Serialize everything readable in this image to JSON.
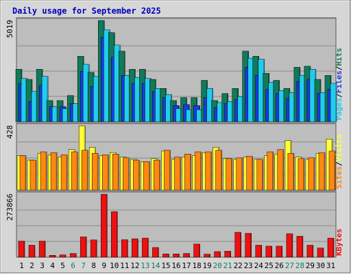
{
  "chart_data": {
    "type": "bar",
    "title": "Daily usage for September 2025",
    "colors": {
      "hits": "#117a5a",
      "files": "#1a3ae6",
      "pages": "#22ccee",
      "visits": "#ffff33",
      "sites": "#ff8811",
      "kbytes": "#ee1111",
      "title": "#0000bb",
      "weekend_day": "#117a5a",
      "plot_bg": "#bdbdbd",
      "frame_bg": "#d6d6d6"
    },
    "categories": [
      "1",
      "2",
      "3",
      "4",
      "5",
      "6",
      "7",
      "8",
      "9",
      "10",
      "11",
      "12",
      "13",
      "14",
      "15",
      "16",
      "17",
      "18",
      "19",
      "20",
      "21",
      "22",
      "23",
      "24",
      "25",
      "26",
      "27",
      "28",
      "29",
      "30",
      "31"
    ],
    "weekend_days": [
      "6",
      "7",
      "13",
      "14",
      "20",
      "21",
      "27",
      "28"
    ],
    "panels": [
      {
        "id": "hits-panel",
        "max_label": "5019",
        "ymax": 5019,
        "legend": [
          {
            "text": "Pages",
            "color": "#22ccee"
          },
          {
            "text": "/",
            "color": "#000000"
          },
          {
            "text": "Files",
            "color": "#1a3ae6"
          },
          {
            "text": "/",
            "color": "#000000"
          },
          {
            "text": "Hits",
            "color": "#117a5a"
          }
        ],
        "series": [
          {
            "name": "Hits",
            "color": "#117a5a",
            "values": [
              2600,
              2100,
              2600,
              1050,
              1050,
              1300,
              3250,
              2450,
              5019,
              4420,
              3500,
              2600,
              2600,
              2100,
              1650,
              1050,
              1200,
              1200,
              2050,
              1050,
              1400,
              1650,
              3500,
              3250,
              2400,
              2050,
              1650,
              2700,
              2750,
              2100,
              2300
            ]
          },
          {
            "name": "Files",
            "color": "#1a3ae6",
            "values": [
              1900,
              1000,
              1800,
              750,
              750,
              900,
              2500,
              1750,
              4200,
              3200,
              2300,
              1900,
              1900,
              1500,
              1200,
              800,
              850,
              800,
              1200,
              700,
              900,
              1100,
              2700,
              2300,
              1600,
              1400,
              1150,
              2000,
              2100,
              1400,
              1600
            ]
          },
          {
            "name": "Pages",
            "color": "#22ccee",
            "values": [
              2150,
              1500,
              2250,
              750,
              650,
              900,
              2850,
              2250,
              4550,
              3800,
              2300,
              2200,
              2150,
              1650,
              1350,
              650,
              600,
              600,
              1650,
              950,
              1000,
              1250,
              3150,
              3100,
              1950,
              1550,
              1450,
              2300,
              2600,
              1450,
              1900
            ]
          }
        ]
      },
      {
        "id": "visits-panel",
        "max_label": "428",
        "ymax": 428,
        "legend": [
          {
            "text": "Sites",
            "color": "#ff8811"
          },
          {
            "text": "/",
            "color": "#000000"
          },
          {
            "text": "Visits",
            "color": "#ffff33"
          }
        ],
        "series": [
          {
            "name": "Visits",
            "color": "#ffff33",
            "values": [
              230,
              200,
              245,
              235,
              220,
              270,
              428,
              285,
              230,
              250,
              220,
              205,
              190,
              210,
              260,
              205,
              220,
              230,
              250,
              285,
              210,
              205,
              220,
              205,
              230,
              240,
              330,
              220,
              205,
              245,
              340
            ]
          },
          {
            "name": "Sites",
            "color": "#ff8811",
            "values": [
              230,
              200,
              255,
              250,
              235,
              255,
              265,
              245,
              235,
              240,
              215,
              200,
              190,
              200,
              265,
              220,
              240,
              255,
              255,
              265,
              210,
              215,
              225,
              205,
              255,
              270,
              245,
              210,
              215,
              250,
              260
            ]
          }
        ]
      },
      {
        "id": "kbytes-panel",
        "max_label": "273866",
        "ymax": 273866,
        "legend": [
          {
            "text": "KBytes",
            "color": "#ee1111"
          }
        ],
        "series": [
          {
            "name": "KBytes",
            "color": "#ee1111",
            "values": [
              70000,
              52000,
              70000,
              8000,
              10000,
              16000,
              88000,
              75000,
              273866,
              198000,
              76000,
              80000,
              83000,
              42000,
              14000,
              14000,
              16000,
              57000,
              13000,
              24000,
              26000,
              108000,
              104000,
              52000,
              48000,
              48000,
              102000,
              91000,
              52000,
              40000,
              83000
            ]
          }
        ]
      }
    ]
  }
}
